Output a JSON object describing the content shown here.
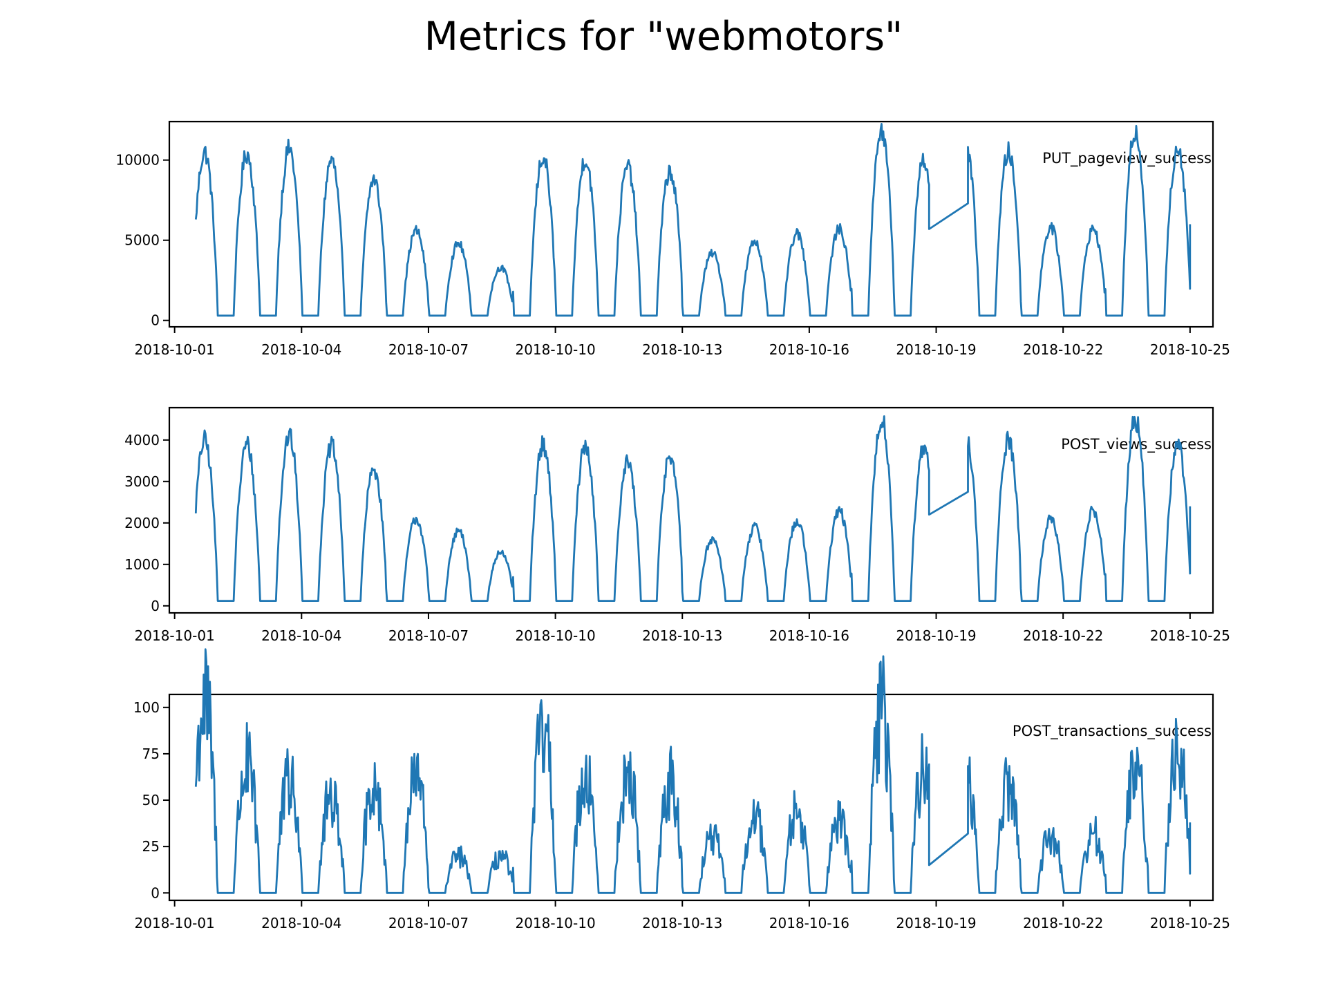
{
  "figure": {
    "title": "Metrics for \"webmotors\""
  },
  "chart_data": [
    {
      "type": "line",
      "series": [
        {
          "name": "PUT_pageview_success"
        }
      ],
      "x_range": [
        "2018-10-01T12:00",
        "2018-10-25T00:00"
      ],
      "ylim": [
        -400,
        12400
      ],
      "yticks": [
        0,
        5000,
        10000
      ],
      "xticks": [
        "2018-10-01",
        "2018-10-04",
        "2018-10-07",
        "2018-10-10",
        "2018-10-13",
        "2018-10-16",
        "2018-10-19",
        "2018-10-22",
        "2018-10-25"
      ],
      "color": "#1f77b4",
      "grid": false,
      "legend_placement": "top-right",
      "daily_peaks": [
        10500,
        10400,
        10700,
        10000,
        8800,
        5600,
        4800,
        3300,
        10200,
        10100,
        9600,
        9300,
        4200,
        4900,
        5400,
        5700,
        11800,
        10100,
        10600,
        10500,
        5800,
        5700,
        11800,
        10800,
        11400
      ],
      "daily_troughs": [
        300,
        300,
        300,
        300,
        300,
        300,
        300,
        300,
        300,
        300,
        300,
        300,
        300,
        300,
        300,
        300,
        300,
        300,
        300,
        300,
        300,
        300,
        300,
        300
      ],
      "gap": {
        "from": "2018-10-18T20:00",
        "to": "2018-10-19T18:00",
        "from_value": 5700,
        "to_value": 7300
      },
      "end_value": 6000
    },
    {
      "type": "line",
      "series": [
        {
          "name": "POST_views_success"
        }
      ],
      "x_range": [
        "2018-10-01T12:00",
        "2018-10-25T00:00"
      ],
      "ylim": [
        -170,
        4780
      ],
      "yticks": [
        0,
        1000,
        2000,
        3000,
        4000
      ],
      "xticks": [
        "2018-10-01",
        "2018-10-04",
        "2018-10-07",
        "2018-10-10",
        "2018-10-13",
        "2018-10-16",
        "2018-10-19",
        "2018-10-22",
        "2018-10-25"
      ],
      "color": "#1f77b4",
      "grid": false,
      "legend_placement": "top-right",
      "daily_peaks": [
        4000,
        3900,
        4100,
        3850,
        3300,
        2100,
        1800,
        1300,
        3900,
        3850,
        3450,
        3650,
        1600,
        1900,
        2050,
        2300,
        4500,
        3800,
        4050,
        4000,
        2100,
        2300,
        4500,
        3900,
        4300
      ],
      "daily_troughs": [
        120,
        120,
        120,
        120,
        120,
        120,
        120,
        120,
        120,
        120,
        120,
        120,
        120,
        120,
        120,
        120,
        120,
        120,
        120,
        120,
        120,
        120,
        120,
        120
      ],
      "gap": {
        "from": "2018-10-18T20:00",
        "to": "2018-10-19T18:00",
        "from_value": 2200,
        "to_value": 2750
      },
      "end_value": 2400
    },
    {
      "type": "line",
      "series": [
        {
          "name": "POST_transactions_success"
        }
      ],
      "x_range": [
        "2018-10-01T12:00",
        "2018-10-25T00:00"
      ],
      "ylim": [
        -4,
        107
      ],
      "yticks": [
        0,
        25,
        50,
        75,
        100
      ],
      "xticks": [
        "2018-10-01",
        "2018-10-04",
        "2018-10-07",
        "2018-10-10",
        "2018-10-13",
        "2018-10-16",
        "2018-10-19",
        "2018-10-22",
        "2018-10-25"
      ],
      "color": "#1f77b4",
      "grid": false,
      "legend_placement": "top-right",
      "daily_peaks": [
        102,
        68,
        59,
        53,
        59,
        62,
        20,
        20,
        85,
        65,
        65,
        59,
        30,
        40,
        45,
        38,
        97,
        67,
        63,
        58,
        32,
        32,
        67,
        76,
        85
      ],
      "daily_troughs": [
        0,
        0,
        0,
        0,
        0,
        0,
        0,
        0,
        0,
        0,
        0,
        0,
        0,
        0,
        0,
        0,
        0,
        0,
        0,
        0,
        0,
        0,
        0,
        0
      ],
      "gap": {
        "from": "2018-10-18T20:00",
        "to": "2018-10-19T18:00",
        "from_value": 15,
        "to_value": 32
      },
      "end_value": 38
    }
  ]
}
